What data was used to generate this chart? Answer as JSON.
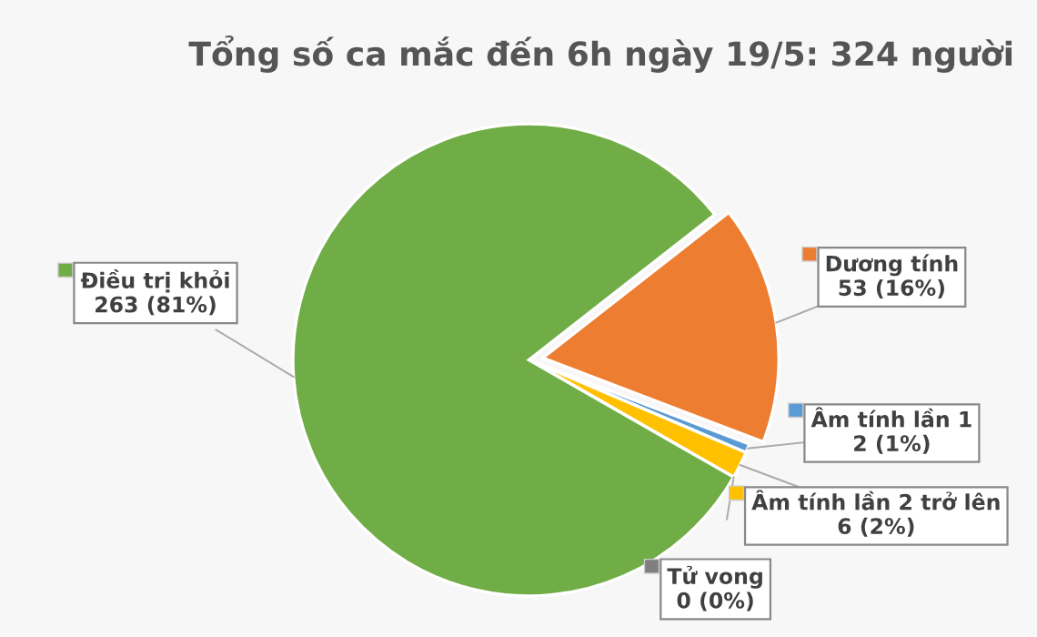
{
  "chart_data": {
    "type": "pie",
    "title": "Tổng số ca mắc đến 6h ngày 19/5: 324 người",
    "categories": [
      "Dương tính",
      "Âm tính lần 1",
      "Âm tính lần 2 trở lên",
      "Tử vong",
      "Điều trị khỏi"
    ],
    "values": [
      53,
      2,
      6,
      0,
      263
    ],
    "value_labels": [
      "53 (16%)",
      "2 (1%)",
      "6 (2%)",
      "0 (0%)",
      "263 (81%)"
    ],
    "legend": "right",
    "colors": [
      "#ed7d31",
      "#5b9bd5",
      "#ffc000",
      "#7f7f7f",
      "#70ad47"
    ]
  }
}
